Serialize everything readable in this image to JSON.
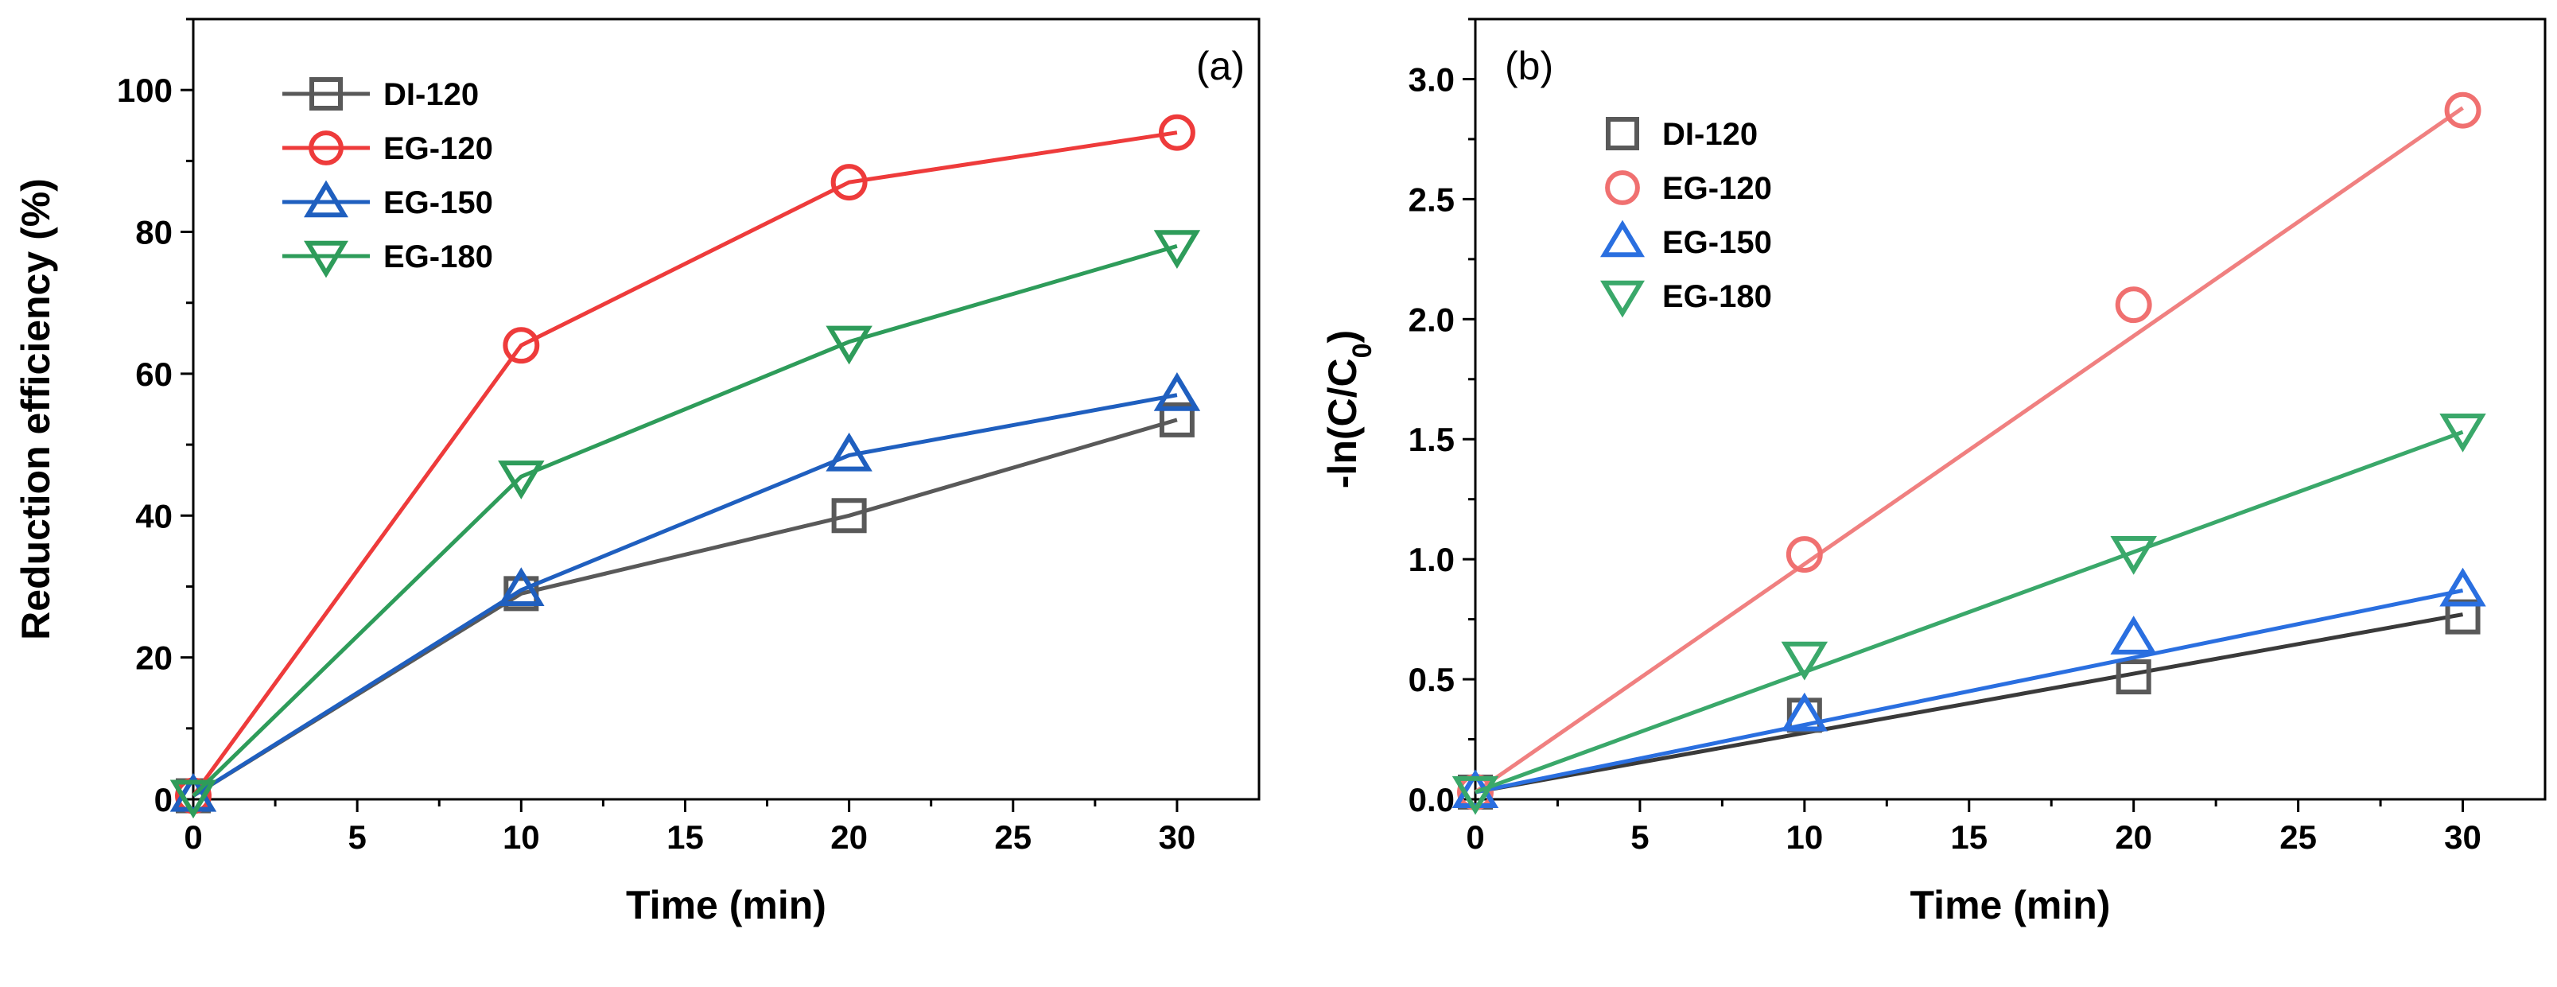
{
  "chart_data": [
    {
      "type": "line",
      "panel_label": "(a)",
      "title": "",
      "xlabel": "Time (min)",
      "ylabel": "Reduction efficiency (%)",
      "xlim": [
        0,
        32.5
      ],
      "ylim": [
        0,
        110
      ],
      "xticks": [
        0,
        5,
        10,
        15,
        20,
        25,
        30
      ],
      "yticks": [
        0,
        20,
        40,
        60,
        80,
        100
      ],
      "x": [
        0,
        10,
        20,
        30
      ],
      "legend_position": "top-left",
      "series": [
        {
          "name": "DI-120",
          "marker": "square",
          "color": "#595959",
          "values": [
            0.5,
            29,
            40,
            53.5
          ]
        },
        {
          "name": "EG-120",
          "marker": "circle",
          "color": "#ee3b3b",
          "values": [
            0.5,
            64,
            87,
            94
          ]
        },
        {
          "name": "EG-150",
          "marker": "triangle-up",
          "color": "#1f5fbf",
          "values": [
            0.5,
            29.5,
            48.5,
            57
          ]
        },
        {
          "name": "EG-180",
          "marker": "triangle-down",
          "color": "#2e9c5a",
          "values": [
            0.5,
            45.5,
            64.5,
            78
          ]
        }
      ]
    },
    {
      "type": "scatter",
      "panel_label": "(b)",
      "title": "",
      "xlabel": "Time (min)",
      "ylabel": "-ln(C/C",
      "ylabel_sub": "0",
      "ylabel_end": ")",
      "xlim": [
        0,
        32.5
      ],
      "ylim": [
        0,
        3.25
      ],
      "xticks": [
        0,
        5,
        10,
        15,
        20,
        25,
        30
      ],
      "yticks": [
        0.0,
        0.5,
        1.0,
        1.5,
        2.0,
        2.5,
        3.0
      ],
      "ytick_labels": [
        "0.0",
        "0.5",
        "1.0",
        "1.5",
        "2.0",
        "2.5",
        "3.0"
      ],
      "x": [
        0,
        10,
        20,
        30
      ],
      "legend_position": "top-left",
      "series": [
        {
          "name": "DI-120",
          "marker": "square",
          "color": "#595959",
          "line_color": "#3a3a3a",
          "values": [
            0.03,
            0.35,
            0.51,
            0.76
          ],
          "fit": [
            0.03,
            0.77
          ]
        },
        {
          "name": "EG-120",
          "marker": "circle",
          "color": "#f07070",
          "line_color": "#f08080",
          "values": [
            0.03,
            1.02,
            2.06,
            2.87
          ],
          "fit": [
            0.03,
            2.88
          ]
        },
        {
          "name": "EG-150",
          "marker": "triangle-up",
          "color": "#2a6fe0",
          "line_color": "#2a6fe0",
          "values": [
            0.03,
            0.35,
            0.67,
            0.87
          ],
          "fit": [
            0.03,
            0.87
          ]
        },
        {
          "name": "EG-180",
          "marker": "triangle-down",
          "color": "#3aa86a",
          "line_color": "#3aa86a",
          "values": [
            0.03,
            0.59,
            1.03,
            1.54
          ],
          "fit": [
            0.03,
            1.53
          ]
        }
      ]
    }
  ]
}
